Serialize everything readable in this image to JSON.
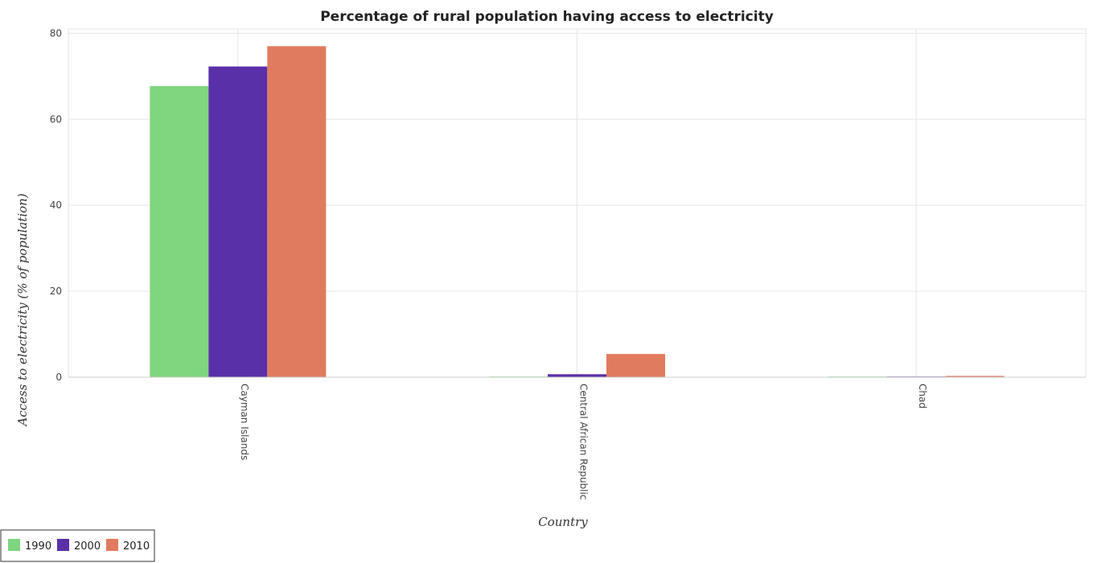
{
  "chart_data": {
    "type": "bar",
    "title": "Percentage of rural population having access to electricity",
    "xlabel": "Country",
    "ylabel": "Access to electricity (% of population)",
    "categories": [
      "Cayman Islands",
      "Central African Republic",
      "Chad"
    ],
    "series": [
      {
        "name": "1990",
        "color": "#7fd67f",
        "values": [
          67.7,
          0.1,
          0.1
        ]
      },
      {
        "name": "2000",
        "color": "#5a30a8",
        "values": [
          72.27,
          0.7,
          0.1
        ]
      },
      {
        "name": "2010",
        "color": "#e07b5f",
        "values": [
          77.0,
          5.4,
          0.3
        ]
      }
    ],
    "yticks": [
      0,
      20,
      40,
      60,
      80
    ],
    "ylim": [
      0,
      81
    ],
    "grid": true,
    "legend_position": "bottom-left"
  }
}
